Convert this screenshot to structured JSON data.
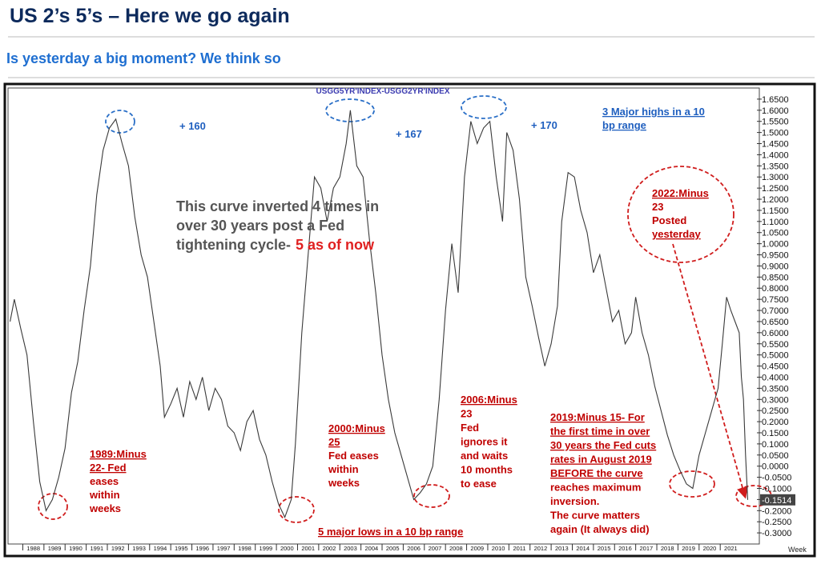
{
  "header": {
    "title": "US 2’s 5’s – Here we go again",
    "subtitle": "Is yesterday a big moment? We think so"
  },
  "chart_data": {
    "type": "line",
    "title": "USGG5YR'INDEX-USGG2YR'INDEX",
    "x_label": "Week",
    "color": "#3a3a3a",
    "x": [
      1987.4,
      1987.6,
      1987.9,
      1988.2,
      1988.5,
      1988.8,
      1989.1,
      1989.4,
      1989.7,
      1990.0,
      1990.3,
      1990.6,
      1990.9,
      1991.2,
      1991.5,
      1991.8,
      1992.1,
      1992.4,
      1992.7,
      1993.0,
      1993.3,
      1993.6,
      1993.9,
      1994.2,
      1994.5,
      1994.7,
      1995.0,
      1995.3,
      1995.6,
      1995.9,
      1996.2,
      1996.5,
      1996.8,
      1997.1,
      1997.4,
      1997.7,
      1998.0,
      1998.3,
      1998.6,
      1998.9,
      1999.2,
      1999.5,
      1999.8,
      2000.1,
      2000.4,
      2000.7,
      2000.9,
      2001.2,
      2001.5,
      2001.8,
      2002.1,
      2002.4,
      2002.7,
      2003.0,
      2003.3,
      2003.5,
      2003.8,
      2004.1,
      2004.4,
      2004.7,
      2005.0,
      2005.3,
      2005.6,
      2005.9,
      2006.2,
      2006.5,
      2006.8,
      2007.1,
      2007.4,
      2007.7,
      2008.0,
      2008.3,
      2008.6,
      2008.9,
      2009.2,
      2009.5,
      2009.8,
      2010.1,
      2010.4,
      2010.7,
      2010.9,
      2011.2,
      2011.5,
      2011.8,
      2012.1,
      2012.4,
      2012.7,
      2013.0,
      2013.3,
      2013.5,
      2013.8,
      2014.1,
      2014.4,
      2014.7,
      2015.0,
      2015.3,
      2015.6,
      2015.9,
      2016.2,
      2016.5,
      2016.8,
      2017.0,
      2017.3,
      2017.6,
      2017.9,
      2018.2,
      2018.5,
      2018.8,
      2019.1,
      2019.4,
      2019.7,
      2020.0,
      2020.3,
      2020.6,
      2020.9,
      2021.1,
      2021.3,
      2021.5,
      2021.7,
      2021.9,
      2022.0,
      2022.1,
      2022.2,
      2022.3
    ],
    "values": [
      0.65,
      0.75,
      0.62,
      0.5,
      0.2,
      -0.07,
      -0.2,
      -0.15,
      -0.05,
      0.08,
      0.33,
      0.47,
      0.7,
      0.9,
      1.22,
      1.42,
      1.52,
      1.56,
      1.45,
      1.35,
      1.12,
      0.95,
      0.85,
      0.65,
      0.45,
      0.22,
      0.28,
      0.35,
      0.22,
      0.38,
      0.3,
      0.4,
      0.25,
      0.35,
      0.3,
      0.18,
      0.15,
      0.07,
      0.2,
      0.25,
      0.12,
      0.05,
      -0.07,
      -0.17,
      -0.23,
      -0.15,
      0.1,
      0.6,
      0.95,
      1.3,
      1.25,
      1.1,
      1.25,
      1.3,
      1.45,
      1.6,
      1.35,
      1.3,
      1.02,
      0.78,
      0.5,
      0.3,
      0.15,
      0.05,
      -0.05,
      -0.15,
      -0.12,
      -0.08,
      0.0,
      0.3,
      0.7,
      1.0,
      0.78,
      1.3,
      1.55,
      1.45,
      1.52,
      1.55,
      1.3,
      1.1,
      1.5,
      1.42,
      1.2,
      0.85,
      0.72,
      0.58,
      0.45,
      0.55,
      0.72,
      1.1,
      1.32,
      1.3,
      1.15,
      1.05,
      0.87,
      0.95,
      0.8,
      0.65,
      0.7,
      0.55,
      0.6,
      0.76,
      0.6,
      0.5,
      0.36,
      0.25,
      0.14,
      0.05,
      -0.02,
      -0.08,
      -0.1,
      0.05,
      0.15,
      0.25,
      0.35,
      0.55,
      0.76,
      0.7,
      0.65,
      0.6,
      0.4,
      0.3,
      0.05,
      -0.1514
    ],
    "xlim": [
      1987.3,
      2022.85
    ],
    "xticks": [
      1988,
      1989,
      1990,
      1991,
      1992,
      1993,
      1994,
      1995,
      1996,
      1997,
      1998,
      1999,
      2000,
      2001,
      2002,
      2003,
      2004,
      2005,
      2006,
      2007,
      2008,
      2009,
      2010,
      2011,
      2012,
      2013,
      2014,
      2015,
      2016,
      2017,
      2018,
      2019,
      2020,
      2021
    ],
    "ylim": [
      -0.35,
      1.7
    ],
    "yticks": [
      {
        "value": 1.65,
        "label": "1.6500"
      },
      {
        "value": 1.6,
        "label": "1.6000"
      },
      {
        "value": 1.55,
        "label": "1.5500"
      },
      {
        "value": 1.5,
        "label": "1.5000"
      },
      {
        "value": 1.45,
        "label": "1.4500"
      },
      {
        "value": 1.4,
        "label": "1.4000"
      },
      {
        "value": 1.35,
        "label": "1.3500"
      },
      {
        "value": 1.3,
        "label": "1.3000"
      },
      {
        "value": 1.25,
        "label": "1.2500"
      },
      {
        "value": 1.2,
        "label": "1.2000"
      },
      {
        "value": 1.15,
        "label": "1.1500"
      },
      {
        "value": 1.1,
        "label": "1.1000"
      },
      {
        "value": 1.05,
        "label": "1.0500"
      },
      {
        "value": 1.0,
        "label": "1.0000"
      },
      {
        "value": 0.95,
        "label": "0.9500"
      },
      {
        "value": 0.9,
        "label": "0.9000"
      },
      {
        "value": 0.85,
        "label": "0.8500"
      },
      {
        "value": 0.8,
        "label": "0.8000"
      },
      {
        "value": 0.75,
        "label": "0.7500"
      },
      {
        "value": 0.7,
        "label": "0.7000"
      },
      {
        "value": 0.65,
        "label": "0.6500"
      },
      {
        "value": 0.6,
        "label": "0.6000"
      },
      {
        "value": 0.55,
        "label": "0.5500"
      },
      {
        "value": 0.5,
        "label": "0.5000"
      },
      {
        "value": 0.45,
        "label": "0.4500"
      },
      {
        "value": 0.4,
        "label": "0.4000"
      },
      {
        "value": 0.35,
        "label": "0.3500"
      },
      {
        "value": 0.3,
        "label": "0.3000"
      },
      {
        "value": 0.25,
        "label": "0.2500"
      },
      {
        "value": 0.2,
        "label": "0.2000"
      },
      {
        "value": 0.15,
        "label": "0.1500"
      },
      {
        "value": 0.1,
        "label": "0.1000"
      },
      {
        "value": 0.05,
        "label": "0.0500"
      },
      {
        "value": 0,
        "label": "0.0000"
      },
      {
        "value": -0.05,
        "label": "-0.0500"
      },
      {
        "value": -0.1,
        "label": "-0.1000"
      },
      {
        "value": -0.15,
        "label": "-0.1500"
      },
      {
        "value": -0.2,
        "label": "-0.2000"
      },
      {
        "value": -0.25,
        "label": "-0.2500"
      },
      {
        "value": -0.3,
        "label": "-0.3000"
      }
    ],
    "annotations": [
      [
        "+ 160"
      ],
      [
        "+ 167"
      ],
      [
        "+ 170"
      ],
      [
        "3 Major highs in a 10",
        "bp range"
      ],
      [
        "This curve inverted 4 times in",
        "over 30 years post a Fed",
        "tightening cycle-"
      ],
      [
        "2022:Minus",
        "23",
        "Posted",
        "yesterday"
      ],
      [
        "1989:Minus",
        "22- Fed",
        "eases",
        "within",
        "weeks"
      ],
      [
        "2000:Minus",
        "25",
        "Fed eases",
        "within",
        "weeks"
      ],
      [
        "2006:Minus",
        "23",
        "Fed",
        "ignores it",
        "and waits",
        "10 months",
        "to ease"
      ],
      [
        "2019:Minus 15- For",
        "the first time in over",
        "30 years the Fed cuts",
        "rates in August 2019",
        "BEFORE the curve",
        "reaches maximum",
        "inversion.",
        "The curve matters",
        "again (It always did)"
      ],
      [
        "5 major lows in a 10 bp range"
      ]
    ],
    "emphasis": "5 as of now"
  }
}
